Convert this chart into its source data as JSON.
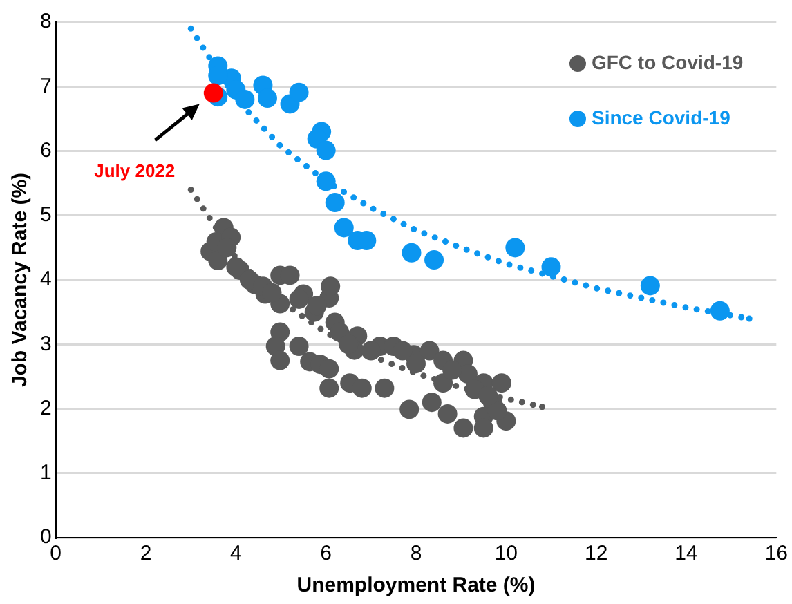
{
  "chart_data": {
    "type": "scatter",
    "xlabel": "Unemployment Rate (%)",
    "ylabel": "Job Vacancy Rate (%)",
    "xlim": [
      0,
      16
    ],
    "xticks": [
      0,
      2,
      4,
      6,
      8,
      10,
      12,
      14,
      16
    ],
    "ylim": [
      0,
      8
    ],
    "yticks": [
      0,
      1,
      2,
      3,
      4,
      5,
      6,
      7,
      8
    ],
    "grid": "y",
    "legend": "top right",
    "marker": "circle",
    "annotations": [
      "July 2022"
    ],
    "series": [
      {
        "name": "GFC to Covid-19",
        "color": "#595959",
        "x": [
          3.73,
          3.43,
          3.56,
          3.89,
          4.09,
          4.42,
          4.65,
          4.98,
          5.2,
          4.98,
          5.5,
          5.74,
          6.07,
          6.2,
          6.3,
          6.7,
          6.63,
          7.2,
          7.5,
          7.95,
          8.3,
          8.6,
          9.05,
          9.15,
          9.5,
          9.9,
          9.7,
          9.5,
          10.0,
          9.8,
          8.6,
          3.6,
          3.8,
          4.0,
          4.3,
          4.6,
          4.8,
          5.4,
          5.8,
          6.1,
          6.5,
          7.0,
          7.7,
          8.0,
          8.8,
          9.3,
          9.6,
          4.98,
          4.88,
          5.4,
          4.98,
          5.64,
          5.87,
          6.07,
          6.07,
          6.53,
          6.8,
          7.3,
          7.85,
          8.35,
          8.7,
          9.05,
          9.5
        ],
        "values": [
          4.81,
          4.44,
          4.59,
          4.66,
          4.15,
          3.93,
          3.78,
          4.07,
          4.07,
          3.63,
          3.78,
          3.5,
          3.72,
          3.34,
          3.19,
          3.13,
          2.91,
          2.97,
          2.97,
          2.84,
          2.9,
          2.75,
          2.75,
          2.54,
          2.4,
          2.4,
          2.1,
          1.88,
          1.81,
          1.97,
          2.4,
          4.3,
          4.5,
          4.2,
          4.0,
          3.9,
          3.8,
          3.7,
          3.6,
          3.9,
          3.0,
          2.9,
          2.9,
          2.7,
          2.6,
          2.3,
          2.2,
          3.19,
          2.97,
          2.97,
          2.75,
          2.73,
          2.69,
          2.62,
          2.32,
          2.4,
          2.32,
          2.32,
          1.99,
          2.1,
          1.92,
          1.7,
          1.7
        ]
      },
      {
        "name": "Since Covid-19",
        "color": "#0b96f0",
        "x": [
          3.6,
          3.9,
          4.0,
          4.2,
          3.6,
          4.6,
          4.7,
          5.2,
          5.4,
          5.9,
          5.8,
          6.0,
          6.0,
          6.2,
          6.4,
          6.7,
          6.9,
          7.9,
          8.4,
          10.2,
          11.0,
          13.2,
          14.75,
          3.6
        ],
        "values": [
          7.32,
          7.13,
          6.95,
          6.8,
          6.84,
          7.02,
          6.82,
          6.73,
          6.91,
          6.3,
          6.19,
          6.01,
          5.53,
          5.2,
          4.81,
          4.61,
          4.61,
          4.42,
          4.31,
          4.5,
          4.2,
          3.91,
          3.52,
          7.17
        ]
      },
      {
        "color": "#ff0000",
        "x": [
          3.5
        ],
        "values": [
          6.9
        ]
      },
      {
        "type": "line",
        "color": "#595959",
        "line_style": "dotted",
        "marker": "none",
        "x": [
          3.0,
          4,
          5,
          6,
          7,
          8,
          9,
          10,
          10.8
        ],
        "values": [
          5.4,
          4.34,
          3.67,
          3.18,
          2.82,
          2.55,
          2.33,
          2.16,
          2.03
        ]
      },
      {
        "type": "line",
        "color": "#0b96f0",
        "line_style": "dotted",
        "marker": "none",
        "x": [
          3.0,
          4,
          5,
          6,
          7,
          8,
          9,
          10,
          11,
          12,
          13,
          14,
          15.4
        ],
        "values": [
          7.9,
          6.81,
          6.07,
          5.53,
          5.12,
          4.77,
          4.5,
          4.25,
          4.06,
          3.87,
          3.72,
          3.57,
          3.4
        ]
      }
    ]
  }
}
